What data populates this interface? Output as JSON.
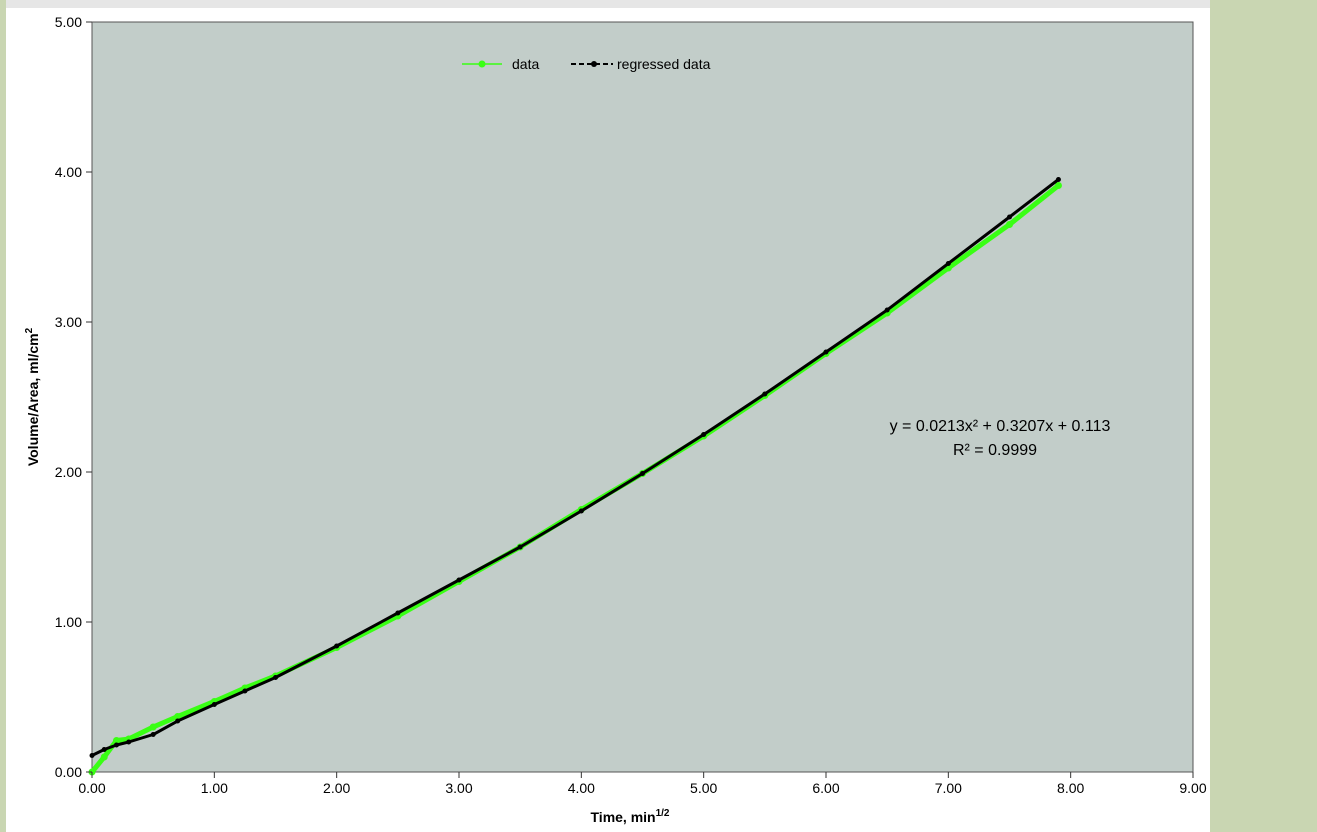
{
  "colors": {
    "plot_bg": "#c2cdc9",
    "side_band": "#c9d6b2",
    "data_series": "#39ff14",
    "regressed_series": "#000000"
  },
  "chart_data": {
    "type": "scatter",
    "xlabel": "Time, min",
    "xlabel_sup": "1/2",
    "ylabel": "Volume/Area, ml/cm",
    "ylabel_sup": "2",
    "xlim": [
      0,
      9
    ],
    "ylim": [
      0,
      5
    ],
    "x_ticks": [
      "0.00",
      "1.00",
      "2.00",
      "3.00",
      "4.00",
      "5.00",
      "6.00",
      "7.00",
      "8.00",
      "9.00"
    ],
    "y_ticks": [
      "0.00",
      "1.00",
      "2.00",
      "3.00",
      "4.00",
      "5.00"
    ],
    "grid": false,
    "legend_position": "top-center",
    "series": [
      {
        "name": "data",
        "style": "green markers with thin line",
        "x": [
          0.0,
          0.1,
          0.2,
          0.3,
          0.5,
          0.7,
          1.0,
          1.25,
          1.5,
          2.0,
          2.5,
          3.0,
          3.5,
          4.0,
          4.5,
          5.0,
          5.5,
          6.0,
          6.5,
          7.0,
          7.5,
          7.9
        ],
        "y": [
          0.0,
          0.1,
          0.21,
          0.22,
          0.3,
          0.37,
          0.47,
          0.56,
          0.64,
          0.83,
          1.04,
          1.27,
          1.5,
          1.75,
          1.99,
          2.24,
          2.51,
          2.79,
          3.06,
          3.36,
          3.65,
          3.91
        ]
      },
      {
        "name": "regressed data",
        "style": "black dashed line with markers",
        "x": [
          0.0,
          0.1,
          0.2,
          0.3,
          0.5,
          0.7,
          1.0,
          1.25,
          1.5,
          2.0,
          2.5,
          3.0,
          3.5,
          4.0,
          4.5,
          5.0,
          5.5,
          6.0,
          6.5,
          7.0,
          7.5,
          7.9
        ],
        "y": [
          0.11,
          0.15,
          0.18,
          0.2,
          0.25,
          0.34,
          0.45,
          0.54,
          0.63,
          0.84,
          1.06,
          1.28,
          1.5,
          1.74,
          1.99,
          2.25,
          2.52,
          2.8,
          3.08,
          3.39,
          3.7,
          3.95
        ]
      }
    ],
    "annotation": {
      "equation": "y = 0.0213x² + 0.3207x + 0.113",
      "r_squared": "R² = 0.9999"
    }
  }
}
